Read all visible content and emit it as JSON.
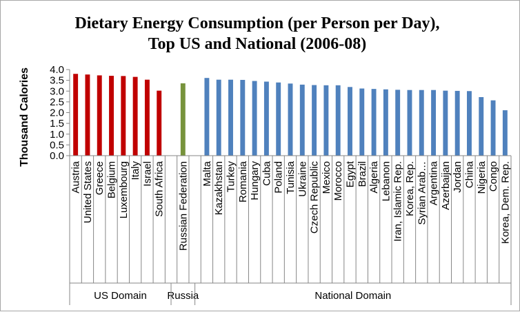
{
  "chart_data": {
    "type": "bar",
    "title": [
      "Dietary Energy Consumption (per Person per Day),",
      "Top US and National (2006-08)"
    ],
    "ylabel": "Thousand Calories",
    "xlabel": "",
    "ylim": [
      0,
      4.0
    ],
    "yticks": [
      "0.0",
      "0.5",
      "1.0",
      "1.5",
      "2.0",
      "2.5",
      "3.0",
      "3.5",
      "4.0"
    ],
    "grid": false,
    "legend": "none",
    "groups": [
      {
        "name": "US Domain",
        "color": "#c00000",
        "categories": [
          "Austria",
          "United States",
          "Greece",
          "Belgium",
          "Luxembourg",
          "Italy",
          "Israel",
          "South Africa"
        ],
        "values": [
          3.8,
          3.77,
          3.73,
          3.71,
          3.7,
          3.66,
          3.53,
          3.02
        ]
      },
      {
        "name": "Russia",
        "color": "#77933c",
        "categories": [
          "Russian Federation"
        ],
        "values": [
          3.36
        ]
      },
      {
        "name": "National Domain",
        "color": "#4f81bd",
        "categories": [
          "Malta",
          "Kazakhstan",
          "Turkey",
          "Romania",
          "Hungary",
          "Cuba",
          "Poland",
          "Tunisia",
          "Ukraine",
          "Czech Republic",
          "Mexico",
          "Morocco",
          "Egypt",
          "Brazil",
          "Algeria",
          "Lebanon",
          "Iran, Islamic Rep.",
          "Korea, Rep.",
          "Syrian Arab…",
          "Argentina",
          "Azerbaijan",
          "Jordan",
          "China",
          "Nigeria",
          "Congo",
          "Korea, Dem. Rep."
        ],
        "values": [
          3.61,
          3.53,
          3.53,
          3.52,
          3.47,
          3.44,
          3.4,
          3.35,
          3.3,
          3.28,
          3.27,
          3.27,
          3.19,
          3.12,
          3.1,
          3.08,
          3.06,
          3.05,
          3.05,
          3.05,
          3.02,
          3.01,
          3.0,
          2.72,
          2.57,
          2.11
        ]
      }
    ]
  }
}
